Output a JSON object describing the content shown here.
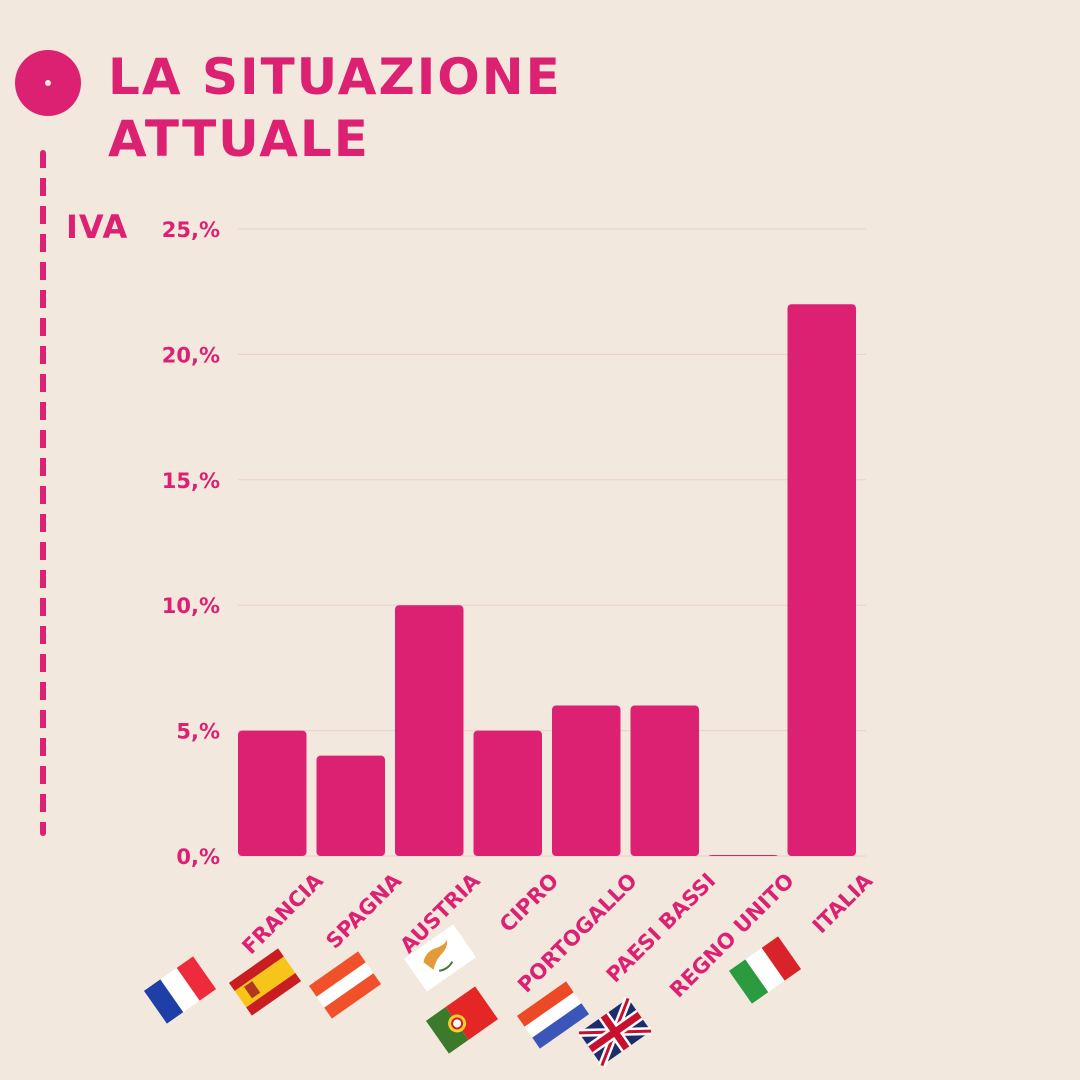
{
  "header": {
    "title_line1": "LA SITUAZIONE",
    "title_line2": "ATTUALE"
  },
  "colors": {
    "accent": "#dd2172",
    "background": "#f2e8de",
    "gridline": "#ecd0c8"
  },
  "chart_data": {
    "type": "bar",
    "ylabel": "IVA",
    "categories": [
      "FRANCIA",
      "SPAGNA",
      "AUSTRIA",
      "CIPRO",
      "PORTOGALLO",
      "PAESI BASSI",
      "REGNO UNITO",
      "ITALIA"
    ],
    "values": [
      5,
      4,
      10,
      5,
      6,
      6,
      0,
      22
    ],
    "ylim": [
      0,
      25
    ],
    "yticks": [
      0,
      5,
      10,
      15,
      20,
      25
    ],
    "ytick_labels": [
      "0,%",
      "5,%",
      "10,%",
      "15,%",
      "20,%",
      "25,%"
    ],
    "grid": true,
    "category_icons": [
      "flag-france-icon",
      "flag-spain-icon",
      "flag-austria-icon",
      "flag-cyprus-icon",
      "flag-portugal-icon",
      "flag-netherlands-icon",
      "flag-uk-icon",
      "flag-italy-icon"
    ]
  }
}
